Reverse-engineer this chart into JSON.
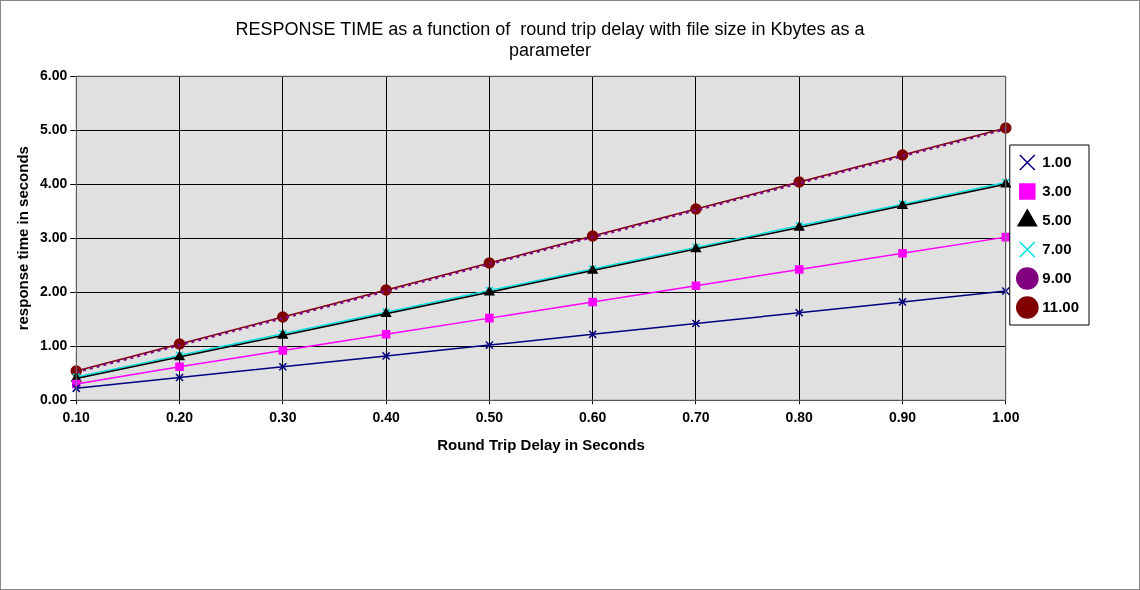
{
  "chart_data": {
    "type": "line",
    "title": "RESPONSE TIME as a function of  round trip delay with file size in Kbytes as a parameter",
    "xlabel": "Round Trip Delay in Seconds",
    "ylabel": "response time in seconds",
    "categories": [
      "0.10",
      "0.20",
      "0.30",
      "0.40",
      "0.50",
      "0.60",
      "0.70",
      "0.80",
      "0.90",
      "1.00"
    ],
    "ylim": [
      0,
      6
    ],
    "yticks": [
      {
        "value": 0,
        "label": "0.00"
      },
      {
        "value": 1,
        "label": "1.00"
      },
      {
        "value": 2,
        "label": "2.00"
      },
      {
        "value": 3,
        "label": "3.00"
      },
      {
        "value": 4,
        "label": "4.00"
      },
      {
        "value": 5,
        "label": "5.00"
      },
      {
        "value": 6,
        "label": "6.00"
      }
    ],
    "grid": true,
    "legend": "right",
    "series": [
      {
        "name": "1.00",
        "color": "#000080",
        "marker": "cross",
        "line_style": "solid",
        "values": [
          0.22,
          0.42,
          0.62,
          0.82,
          1.02,
          1.22,
          1.42,
          1.62,
          1.82,
          2.02
        ]
      },
      {
        "name": "3.00",
        "color": "#ff00ff",
        "marker": "square",
        "line_style": "solid",
        "values": [
          0.3,
          0.62,
          0.92,
          1.22,
          1.52,
          1.82,
          2.12,
          2.42,
          2.72,
          3.02
        ]
      },
      {
        "name": "5.00",
        "color": "#000000",
        "marker": "triangle",
        "line_style": "solid",
        "values": [
          0.4,
          0.8,
          1.2,
          1.6,
          2.0,
          2.4,
          2.8,
          3.2,
          3.6,
          4.0
        ]
      },
      {
        "name": "7.00",
        "color": "#00e0e0",
        "marker": "cross",
        "line_style": "solid",
        "values": [
          0.43,
          0.83,
          1.23,
          1.63,
          2.03,
          2.43,
          2.83,
          3.23,
          3.63,
          4.03
        ]
      },
      {
        "name": "9.00",
        "color": "#800080",
        "marker": "none",
        "line_style": "dotted",
        "values": [
          0.52,
          1.02,
          1.52,
          2.02,
          2.52,
          3.02,
          3.52,
          4.02,
          4.52,
          5.02
        ]
      },
      {
        "name": "11.00",
        "color": "#800000",
        "marker": "circle",
        "line_style": "solid",
        "values": [
          0.54,
          1.04,
          1.54,
          2.04,
          2.54,
          3.04,
          3.54,
          4.04,
          4.54,
          5.04
        ]
      }
    ]
  }
}
